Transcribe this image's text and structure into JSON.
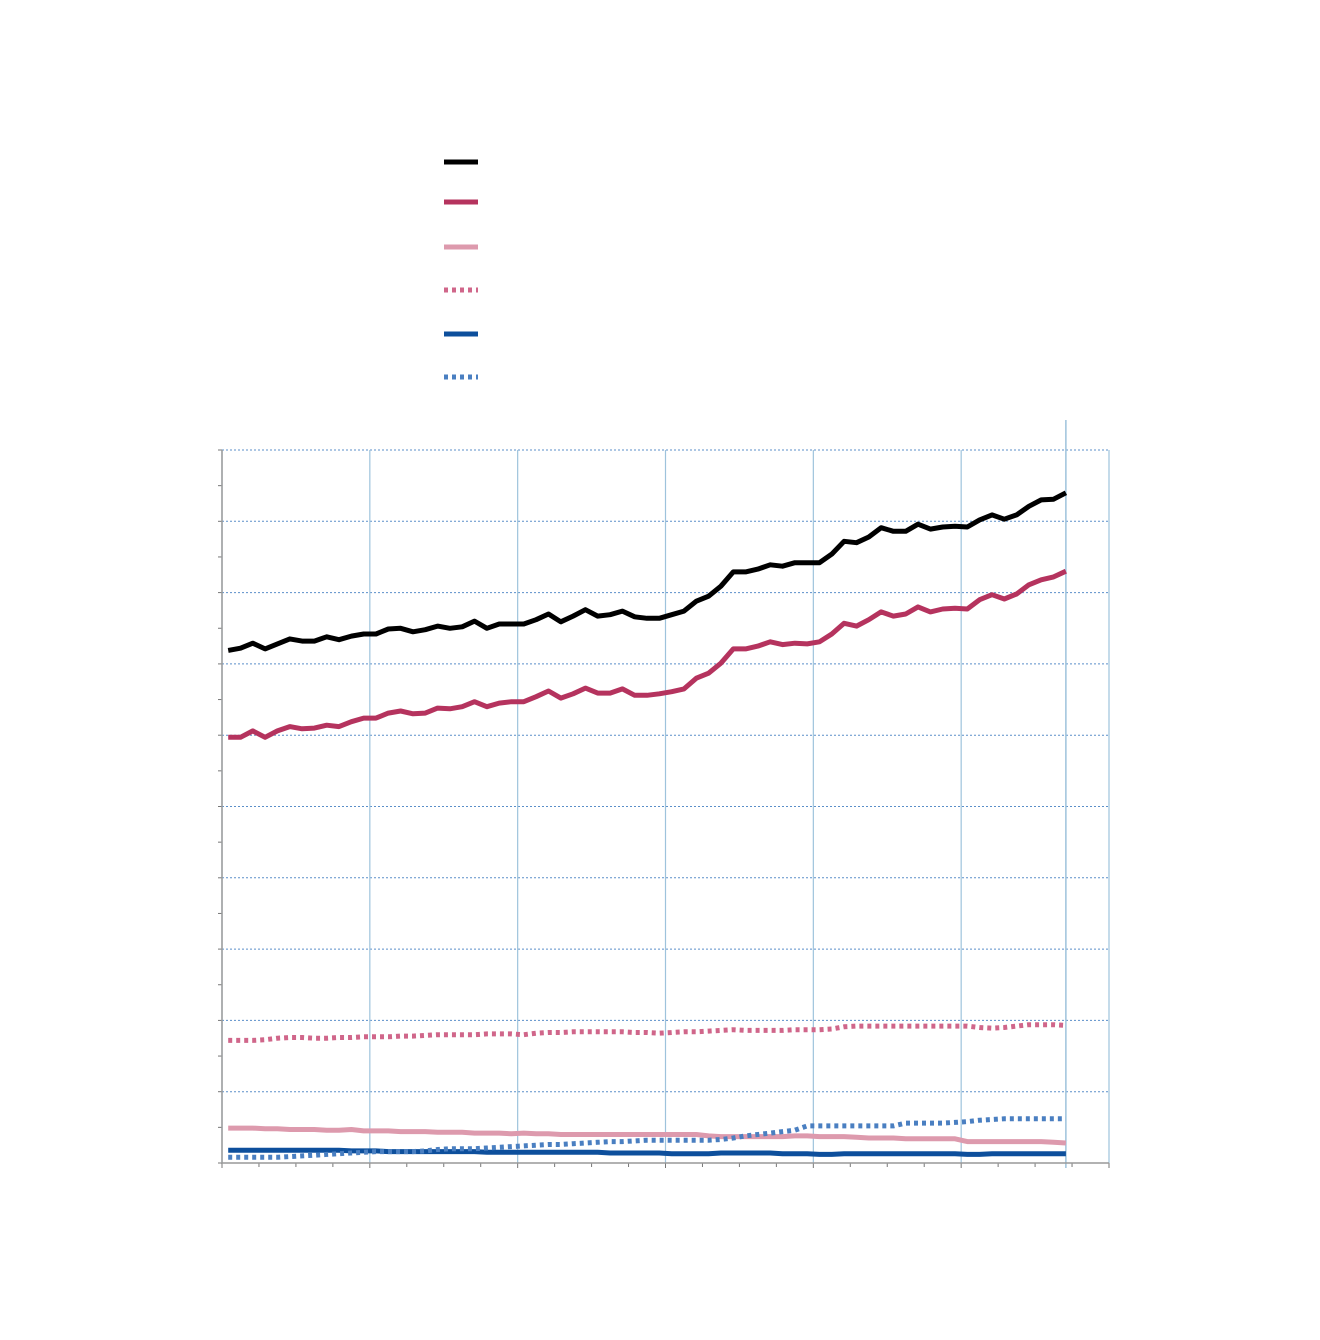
{
  "chart_data": {
    "type": "line",
    "x": [
      0.5,
      1.5,
      2.5,
      3.5,
      4.5,
      5.5,
      6.5,
      7.5,
      8.5,
      9.5,
      10.5,
      11.5,
      12.5,
      13.5,
      14.5,
      15.5,
      16.5,
      17.5,
      18.5,
      19.5,
      20.5,
      21.5,
      22.5,
      23.5,
      24.5,
      25.5,
      26.5,
      27.5,
      28.5,
      29.5,
      30.5,
      31.5,
      32.5,
      33.5,
      34.5,
      35.5,
      36.5,
      37.5,
      38.5,
      39.5,
      40.5,
      41.5,
      42.5,
      43.5,
      44.5,
      45.5,
      46.5,
      47.5,
      48.5,
      49.5,
      50.5,
      51.5,
      52.5,
      53.5,
      54.5,
      55.5,
      56.5,
      57.5,
      58.5,
      59.5,
      60.5,
      61.5,
      62.5,
      63.5,
      64.5,
      65.5,
      66.5,
      67.5,
      68.5
    ],
    "series": [
      {
        "color": "#000000",
        "dashed": false,
        "values": [
          7.19,
          7.22,
          7.29,
          7.21,
          7.28,
          7.35,
          7.32,
          7.32,
          7.38,
          7.34,
          7.39,
          7.42,
          7.42,
          7.49,
          7.5,
          7.45,
          7.48,
          7.53,
          7.5,
          7.52,
          7.6,
          7.5,
          7.56,
          7.56,
          7.56,
          7.62,
          7.7,
          7.59,
          7.67,
          7.76,
          7.67,
          7.69,
          7.74,
          7.66,
          7.64,
          7.64,
          7.69,
          7.74,
          7.88,
          7.95,
          8.09,
          8.29,
          8.29,
          8.33,
          8.39,
          8.37,
          8.42,
          8.42,
          8.42,
          8.54,
          8.72,
          8.7,
          8.78,
          8.91,
          8.86,
          8.86,
          8.96,
          8.89,
          8.92,
          8.93,
          8.92,
          9.02,
          9.09,
          9.03,
          9.09,
          9.21,
          9.3,
          9.31,
          9.4
        ]
      },
      {
        "color": "#b5335e",
        "dashed": false,
        "values": [
          5.97,
          5.97,
          6.06,
          5.97,
          6.06,
          6.12,
          6.09,
          6.1,
          6.14,
          6.12,
          6.19,
          6.24,
          6.24,
          6.31,
          6.34,
          6.3,
          6.31,
          6.38,
          6.37,
          6.4,
          6.47,
          6.4,
          6.45,
          6.47,
          6.47,
          6.54,
          6.62,
          6.52,
          6.58,
          6.66,
          6.59,
          6.59,
          6.65,
          6.56,
          6.56,
          6.58,
          6.61,
          6.65,
          6.8,
          6.87,
          7.01,
          7.21,
          7.21,
          7.25,
          7.31,
          7.27,
          7.29,
          7.28,
          7.31,
          7.42,
          7.57,
          7.53,
          7.62,
          7.73,
          7.67,
          7.7,
          7.8,
          7.73,
          7.77,
          7.78,
          7.77,
          7.9,
          7.97,
          7.91,
          7.98,
          8.11,
          8.18,
          8.22,
          8.3
        ]
      },
      {
        "color": "#dd9aad",
        "dashed": false,
        "values": [
          0.49,
          0.49,
          0.49,
          0.48,
          0.48,
          0.47,
          0.47,
          0.47,
          0.46,
          0.46,
          0.47,
          0.45,
          0.45,
          0.45,
          0.44,
          0.44,
          0.44,
          0.43,
          0.43,
          0.43,
          0.42,
          0.42,
          0.42,
          0.41,
          0.42,
          0.41,
          0.41,
          0.4,
          0.4,
          0.4,
          0.4,
          0.4,
          0.4,
          0.4,
          0.4,
          0.4,
          0.4,
          0.4,
          0.4,
          0.38,
          0.37,
          0.37,
          0.37,
          0.37,
          0.37,
          0.37,
          0.38,
          0.38,
          0.37,
          0.37,
          0.37,
          0.36,
          0.35,
          0.35,
          0.35,
          0.34,
          0.34,
          0.34,
          0.34,
          0.34,
          0.3,
          0.3,
          0.3,
          0.3,
          0.3,
          0.3,
          0.3,
          0.29,
          0.28
        ]
      },
      {
        "color": "#d0668a",
        "dashed": true,
        "values": [
          1.72,
          1.72,
          1.72,
          1.73,
          1.75,
          1.76,
          1.76,
          1.75,
          1.75,
          1.76,
          1.76,
          1.77,
          1.77,
          1.77,
          1.78,
          1.78,
          1.79,
          1.8,
          1.8,
          1.8,
          1.8,
          1.81,
          1.81,
          1.81,
          1.8,
          1.82,
          1.83,
          1.83,
          1.84,
          1.84,
          1.84,
          1.84,
          1.84,
          1.83,
          1.83,
          1.82,
          1.83,
          1.84,
          1.84,
          1.85,
          1.86,
          1.87,
          1.86,
          1.86,
          1.86,
          1.86,
          1.87,
          1.87,
          1.87,
          1.88,
          1.91,
          1.92,
          1.92,
          1.92,
          1.92,
          1.92,
          1.92,
          1.92,
          1.92,
          1.92,
          1.92,
          1.9,
          1.89,
          1.9,
          1.92,
          1.94,
          1.94,
          1.94,
          1.93
        ]
      },
      {
        "color": "#0d4f9c",
        "dashed": false,
        "values": [
          0.18,
          0.18,
          0.18,
          0.18,
          0.18,
          0.18,
          0.18,
          0.18,
          0.18,
          0.18,
          0.17,
          0.17,
          0.17,
          0.16,
          0.16,
          0.16,
          0.16,
          0.16,
          0.16,
          0.16,
          0.16,
          0.15,
          0.15,
          0.15,
          0.15,
          0.15,
          0.15,
          0.15,
          0.15,
          0.15,
          0.15,
          0.14,
          0.14,
          0.14,
          0.14,
          0.14,
          0.13,
          0.13,
          0.13,
          0.13,
          0.14,
          0.14,
          0.14,
          0.14,
          0.14,
          0.13,
          0.13,
          0.13,
          0.12,
          0.12,
          0.13,
          0.13,
          0.13,
          0.13,
          0.13,
          0.13,
          0.13,
          0.13,
          0.13,
          0.13,
          0.12,
          0.12,
          0.13,
          0.13,
          0.13,
          0.13,
          0.13,
          0.13,
          0.13
        ]
      },
      {
        "color": "#4a7fc1",
        "dashed": true,
        "values": [
          0.08,
          0.08,
          0.08,
          0.08,
          0.08,
          0.09,
          0.1,
          0.11,
          0.12,
          0.13,
          0.14,
          0.15,
          0.16,
          0.16,
          0.16,
          0.16,
          0.17,
          0.19,
          0.2,
          0.2,
          0.2,
          0.21,
          0.22,
          0.23,
          0.24,
          0.25,
          0.26,
          0.26,
          0.27,
          0.28,
          0.29,
          0.3,
          0.3,
          0.31,
          0.32,
          0.32,
          0.32,
          0.32,
          0.32,
          0.32,
          0.33,
          0.35,
          0.38,
          0.4,
          0.42,
          0.44,
          0.46,
          0.52,
          0.52,
          0.52,
          0.52,
          0.52,
          0.52,
          0.52,
          0.52,
          0.56,
          0.56,
          0.56,
          0.56,
          0.57,
          0.58,
          0.6,
          0.61,
          0.62,
          0.62,
          0.62,
          0.62,
          0.62,
          0.62
        ]
      }
    ],
    "xlim": [
      0,
      72
    ],
    "xticks": [
      0,
      12,
      24,
      36,
      48,
      60,
      72
    ],
    "x_minor_ticks": [
      3,
      6,
      9,
      15,
      18,
      21,
      27,
      30,
      33,
      39,
      42,
      45,
      51,
      54,
      57,
      63,
      66,
      69
    ],
    "x_marker": 68.5,
    "ylim": [
      0,
      10
    ],
    "yticks": [
      0,
      1,
      2,
      3,
      4,
      5,
      6,
      7,
      8,
      9,
      10
    ],
    "y_minor_ticks": [
      0.5,
      1.5,
      2.5,
      3.5,
      4.5,
      5.5,
      6.5,
      7.5,
      8.5,
      9.5
    ],
    "grid": true
  }
}
